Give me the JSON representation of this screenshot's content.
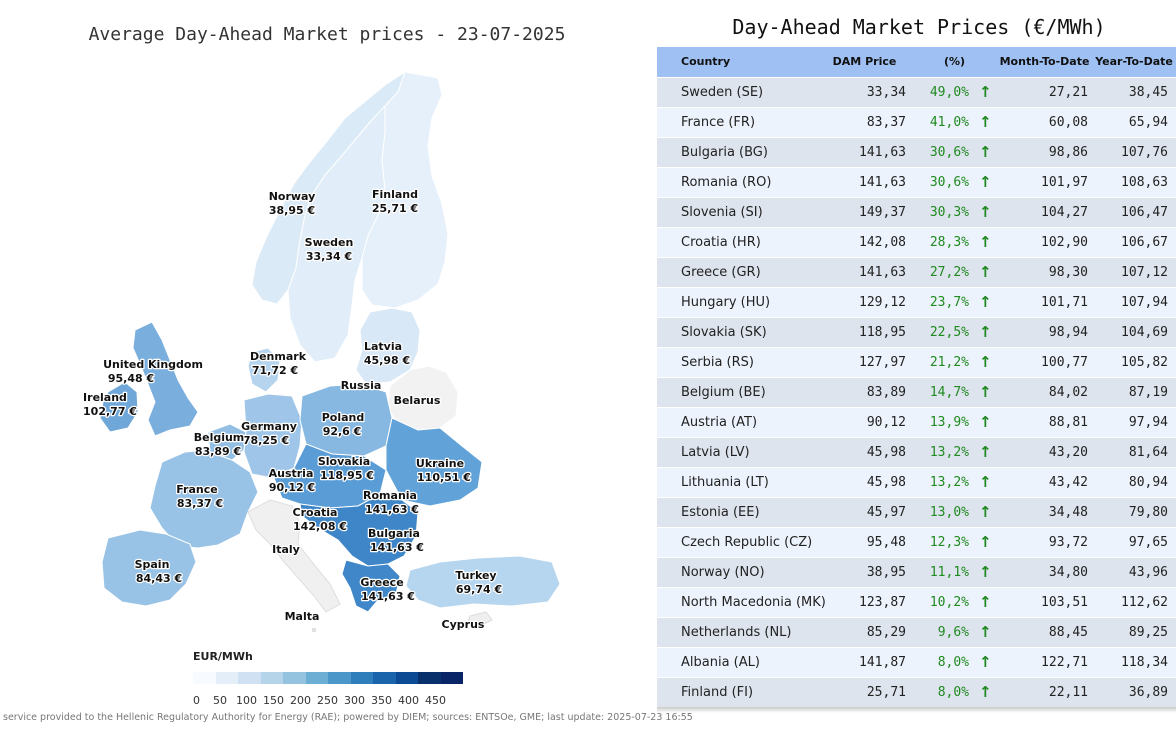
{
  "map": {
    "title": "Average Day-Ahead Market prices - 23-07-2025",
    "legend_title": "EUR/MWh",
    "legend_ticks": [
      "0",
      "50",
      "100",
      "150",
      "200",
      "250",
      "300",
      "350",
      "400",
      "450"
    ],
    "credit": "service provided to the Hellenic Regulatory Authority for Energy (RAE); powered by DIEM; sources: ENTSOe, GME; last update: 2025-07-23 16:55",
    "labels": {
      "norway": {
        "name": "Norway",
        "price": "38,95 €"
      },
      "finland": {
        "name": "Finland",
        "price": "25,71 €"
      },
      "sweden": {
        "name": "Sweden",
        "price": "33,34 €"
      },
      "latvia": {
        "name": "Latvia",
        "price": "45,98 €"
      },
      "uk": {
        "name": "United Kingdom",
        "price": "95,48 €"
      },
      "denmark": {
        "name": "Denmark",
        "price": "71,72 €"
      },
      "russia": {
        "name": "Russia"
      },
      "belarus": {
        "name": "Belarus"
      },
      "ireland": {
        "name": "Ireland",
        "price": "102,77 €"
      },
      "poland": {
        "name": "Poland",
        "price": "92,6 €"
      },
      "germany": {
        "name": "Germany",
        "price": "78,25 €"
      },
      "belgium": {
        "name": "Belgium",
        "price": "83,89 €"
      },
      "ukraine": {
        "name": "Ukraine",
        "price": "110,51 €"
      },
      "slovakia": {
        "name": "Slovakia",
        "price": "118,95 €"
      },
      "austria": {
        "name": "Austria",
        "price": "90,12 €"
      },
      "france": {
        "name": "France",
        "price": "83,37 €"
      },
      "romania": {
        "name": "Romania",
        "price": "141,63 €"
      },
      "croatia": {
        "name": "Croatia",
        "price": "142,08 €"
      },
      "bulgaria": {
        "name": "Bulgaria",
        "price": "141,63 €"
      },
      "italy": {
        "name": "Italy"
      },
      "spain": {
        "name": "Spain",
        "price": "84,43 €"
      },
      "turkey": {
        "name": "Turkey",
        "price": "69,74 €"
      },
      "greece": {
        "name": "Greece",
        "price": "141,63 €"
      },
      "malta": {
        "name": "Malta"
      },
      "cyprus": {
        "name": "Cyprus"
      }
    }
  },
  "table": {
    "title": "Day-Ahead Market Prices (€/MWh)",
    "headers": [
      "Country",
      "DAM Price",
      "(%)",
      "Month-To-Date",
      "Year-To-Date"
    ],
    "up_icon": "arrow-up-icon",
    "rows": [
      {
        "country": "Sweden (SE)",
        "price": "33,34",
        "pct": "49,0%",
        "mtd": "27,21",
        "ytd": "38,45"
      },
      {
        "country": "France (FR)",
        "price": "83,37",
        "pct": "41,0%",
        "mtd": "60,08",
        "ytd": "65,94"
      },
      {
        "country": "Bulgaria (BG)",
        "price": "141,63",
        "pct": "30,6%",
        "mtd": "98,86",
        "ytd": "107,76"
      },
      {
        "country": "Romania (RO)",
        "price": "141,63",
        "pct": "30,6%",
        "mtd": "101,97",
        "ytd": "108,63"
      },
      {
        "country": "Slovenia (SI)",
        "price": "149,37",
        "pct": "30,3%",
        "mtd": "104,27",
        "ytd": "106,47"
      },
      {
        "country": "Croatia (HR)",
        "price": "142,08",
        "pct": "28,3%",
        "mtd": "102,90",
        "ytd": "106,67"
      },
      {
        "country": "Greece (GR)",
        "price": "141,63",
        "pct": "27,2%",
        "mtd": "98,30",
        "ytd": "107,12"
      },
      {
        "country": "Hungary (HU)",
        "price": "129,12",
        "pct": "23,7%",
        "mtd": "101,71",
        "ytd": "107,94"
      },
      {
        "country": "Slovakia (SK)",
        "price": "118,95",
        "pct": "22,5%",
        "mtd": "98,94",
        "ytd": "104,69"
      },
      {
        "country": "Serbia (RS)",
        "price": "127,97",
        "pct": "21,2%",
        "mtd": "100,77",
        "ytd": "105,82"
      },
      {
        "country": "Belgium (BE)",
        "price": "83,89",
        "pct": "14,7%",
        "mtd": "84,02",
        "ytd": "87,19"
      },
      {
        "country": "Austria (AT)",
        "price": "90,12",
        "pct": "13,9%",
        "mtd": "88,81",
        "ytd": "97,94"
      },
      {
        "country": "Latvia (LV)",
        "price": "45,98",
        "pct": "13,2%",
        "mtd": "43,20",
        "ytd": "81,64"
      },
      {
        "country": "Lithuania (LT)",
        "price": "45,98",
        "pct": "13,2%",
        "mtd": "43,42",
        "ytd": "80,94"
      },
      {
        "country": "Estonia (EE)",
        "price": "45,97",
        "pct": "13,0%",
        "mtd": "34,48",
        "ytd": "79,80"
      },
      {
        "country": "Czech Republic (CZ)",
        "price": "95,48",
        "pct": "12,3%",
        "mtd": "93,72",
        "ytd": "97,65"
      },
      {
        "country": "Norway (NO)",
        "price": "38,95",
        "pct": "11,1%",
        "mtd": "34,80",
        "ytd": "43,96"
      },
      {
        "country": "North Macedonia (MK)",
        "price": "123,87",
        "pct": "10,2%",
        "mtd": "103,51",
        "ytd": "112,62"
      },
      {
        "country": "Netherlands (NL)",
        "price": "85,29",
        "pct": "9,6%",
        "mtd": "88,45",
        "ytd": "89,25"
      },
      {
        "country": "Albania (AL)",
        "price": "141,87",
        "pct": "8,0%",
        "mtd": "122,71",
        "ytd": "118,34"
      },
      {
        "country": "Finland (FI)",
        "price": "25,71",
        "pct": "8,0%",
        "mtd": "22,11",
        "ytd": "36,89"
      }
    ]
  }
}
